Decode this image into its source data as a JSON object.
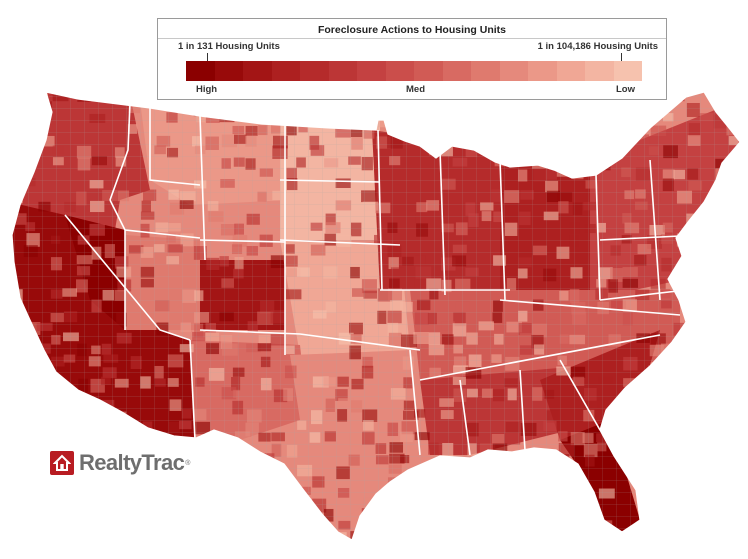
{
  "legend": {
    "title": "Foreclosure Actions to Housing Units",
    "high_end": "1 in 131 Housing Units",
    "low_end": "1 in 104,186 Housing Units",
    "levels": {
      "high": "High",
      "med": "Med",
      "low": "Low"
    },
    "scale_colors": [
      "#8b0000",
      "#980a0a",
      "#a31515",
      "#ad2020",
      "#b52b2b",
      "#bc3636",
      "#c44141",
      "#cb4e4b",
      "#d15b55",
      "#d86a62",
      "#df7a6e",
      "#e5897c",
      "#eb9888",
      "#f0a795",
      "#f3b5a2",
      "#f6c2ae"
    ]
  },
  "map": {
    "subject": "U.S. counties shaded by foreclosure activity",
    "border_color": "#ffffff",
    "county_line_color": "#9a9a9a"
  },
  "brand": {
    "name": "RealtyTrac",
    "registered_mark": "®",
    "icon": "house-icon",
    "color": "#b81c22"
  }
}
